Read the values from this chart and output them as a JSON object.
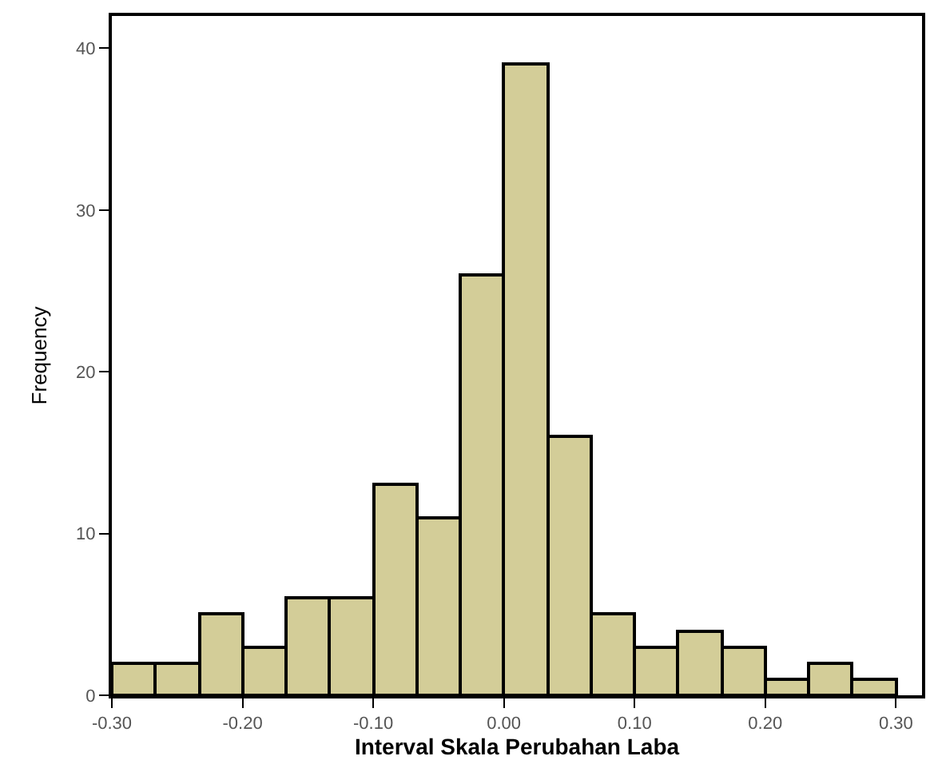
{
  "chart_data": {
    "type": "histogram",
    "xlabel": "Interval Skala Perubahan Laba",
    "ylabel": "Frequency",
    "bins": [
      -0.3,
      -0.2667,
      -0.2333,
      -0.2,
      -0.1667,
      -0.1333,
      -0.1,
      -0.0667,
      -0.0333,
      0.0,
      0.0333,
      0.0667,
      0.1,
      0.1333,
      0.1667,
      0.2,
      0.2333,
      0.2667,
      0.3
    ],
    "values": [
      2,
      2,
      5,
      3,
      6,
      6,
      13,
      11,
      26,
      39,
      16,
      5,
      3,
      4,
      3,
      1,
      2,
      1
    ],
    "color": "#d3cd98",
    "xlim": [
      -0.3,
      0.32
    ],
    "xticks": [
      {
        "value": -0.3,
        "label": "-0.30"
      },
      {
        "value": -0.2,
        "label": "-0.20"
      },
      {
        "value": -0.1,
        "label": "-0.10"
      },
      {
        "value": 0,
        "label": "0.00"
      },
      {
        "value": 0.1,
        "label": "0.10"
      },
      {
        "value": 0.2,
        "label": "0.20"
      },
      {
        "value": 0.3,
        "label": "0.30"
      }
    ],
    "ylim": [
      0,
      42
    ],
    "yticks": [
      0,
      10,
      20,
      30,
      40
    ]
  }
}
